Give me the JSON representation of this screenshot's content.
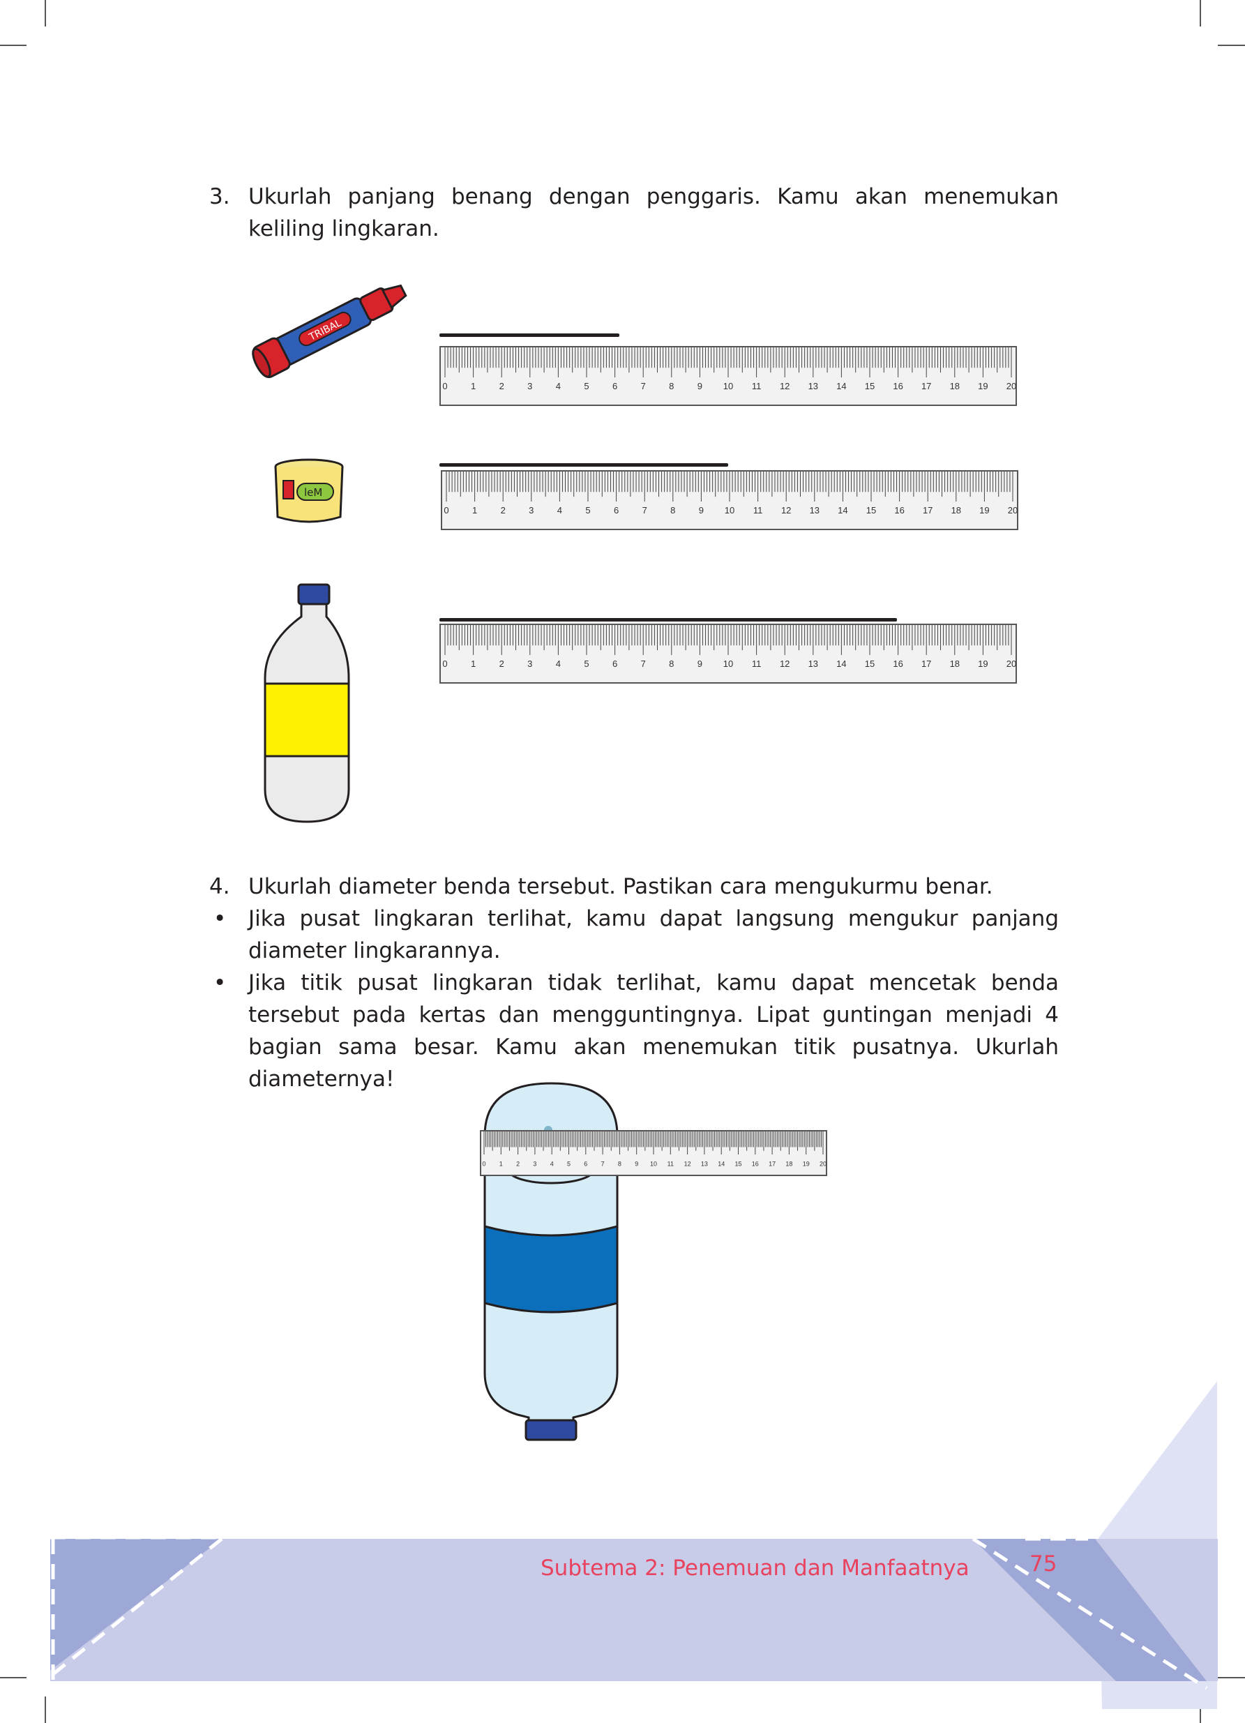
{
  "item3": {
    "number": "3.",
    "text": "Ukurlah panjang benang dengan penggaris. Kamu akan menemukan keliling lingkaran."
  },
  "objects": {
    "marker_label": "TRIBAL",
    "glue_label": "leM"
  },
  "ruler": {
    "ticks": [
      "0",
      "1",
      "2",
      "3",
      "4",
      "5",
      "6",
      "7",
      "8",
      "9",
      "10",
      "11",
      "12",
      "13",
      "14",
      "15",
      "16",
      "17",
      "18",
      "19",
      "20"
    ]
  },
  "item4": {
    "number": "4.",
    "text": "Ukurlah diameter benda tersebut. Pastikan cara mengukurmu benar.",
    "bullet_symbol": "•",
    "bullet1": "Jika pusat lingkaran terlihat, kamu dapat langsung mengukur panjang diameter lingkarannya.",
    "bullet2": "Jika titik pusat lingkaran tidak terlihat, kamu dapat mencetak benda tersebut pada kertas dan mengguntingnya. Lipat guntingan menjadi 4 bagian sama besar. Kamu akan menemukan titik pusatnya. Ukurlah diameternya!"
  },
  "footer": {
    "subtheme": "Subtema 2: Penemuan dan Manfaatnya",
    "page_number": "75"
  },
  "colors": {
    "footer_band": "#c8cce8",
    "footer_triangle": "#9da8d6",
    "footer_text": "#e8425f",
    "marker_body": "#2f5fb7",
    "marker_cap": "#d8232a",
    "bottle_label": "#fff200",
    "water_bottle": "#d6ecf6",
    "water_label": "#0c6fbb",
    "cap_blue": "#2e4aa0"
  }
}
